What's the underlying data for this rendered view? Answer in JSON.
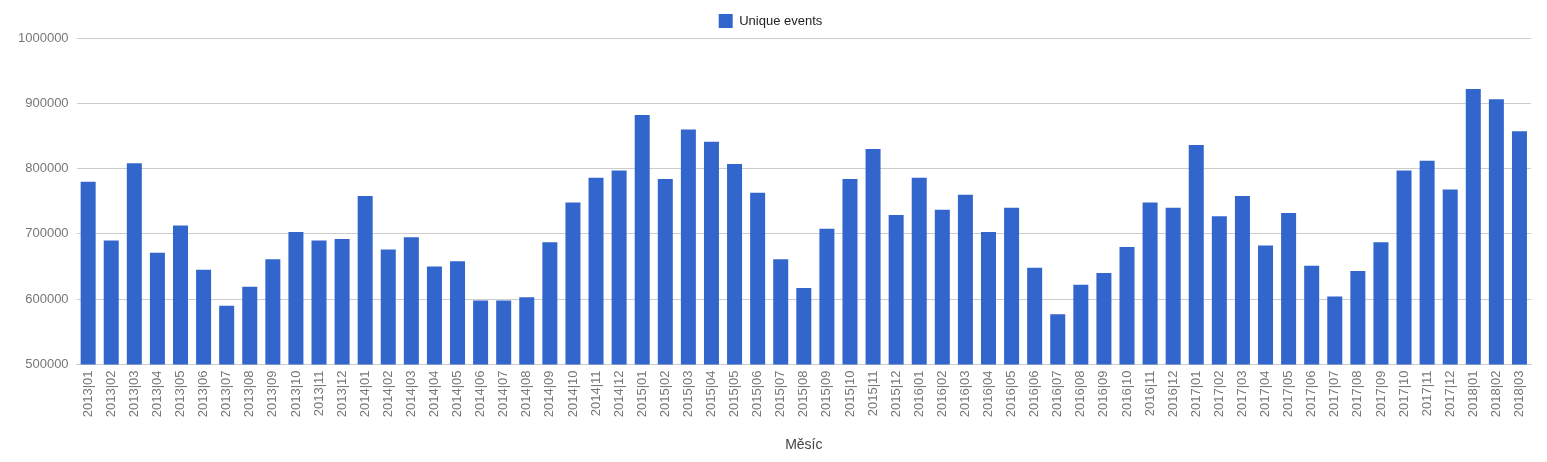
{
  "chart_data": {
    "type": "bar",
    "xlabel": "Měsíc",
    "categories": [
      "2013|01",
      "2013|02",
      "2013|03",
      "2013|04",
      "2013|05",
      "2013|06",
      "2013|07",
      "2013|08",
      "2013|09",
      "2013|10",
      "2013|11",
      "2013|12",
      "2014|01",
      "2014|02",
      "2014|03",
      "2014|04",
      "2014|05",
      "2014|06",
      "2014|07",
      "2014|08",
      "2014|09",
      "2014|10",
      "2014|11",
      "2014|12",
      "2015|01",
      "2015|02",
      "2015|03",
      "2015|04",
      "2015|05",
      "2015|06",
      "2015|07",
      "2015|08",
      "2015|09",
      "2015|10",
      "2015|11",
      "2015|12",
      "2016|01",
      "2016|02",
      "2016|03",
      "2016|04",
      "2016|05",
      "2016|06",
      "2016|07",
      "2016|08",
      "2016|09",
      "2016|10",
      "2016|11",
      "2016|12",
      "2017|01",
      "2017|02",
      "2017|03",
      "2017|04",
      "2017|05",
      "2017|06",
      "2017|07",
      "2017|08",
      "2017|09",
      "2017|10",
      "2017|11",
      "2017|12",
      "2018|01",
      "2018|02",
      "2018|03"
    ],
    "series": [
      {
        "name": "Unique events",
        "color": "#3366cc",
        "values": [
          780000,
          690000,
          808000,
          671000,
          713000,
          645000,
          590000,
          619000,
          661000,
          703000,
          690000,
          692000,
          758000,
          676000,
          695000,
          650000,
          658000,
          598000,
          598000,
          603000,
          687000,
          748000,
          786000,
          797000,
          882000,
          784000,
          860000,
          841000,
          807000,
          763000,
          661000,
          617000,
          708000,
          784000,
          830000,
          729000,
          786000,
          737000,
          760000,
          703000,
          740000,
          648000,
          577000,
          622000,
          640000,
          680000,
          748000,
          740000,
          836000,
          727000,
          758000,
          682000,
          732000,
          651000,
          604000,
          643000,
          687000,
          797000,
          812000,
          768000,
          922000,
          906000,
          857000
        ]
      }
    ],
    "ylim": [
      500000,
      1000000
    ],
    "yticks": [
      500000,
      600000,
      700000,
      800000,
      900000,
      1000000
    ],
    "grid": "y",
    "legend": "top"
  }
}
